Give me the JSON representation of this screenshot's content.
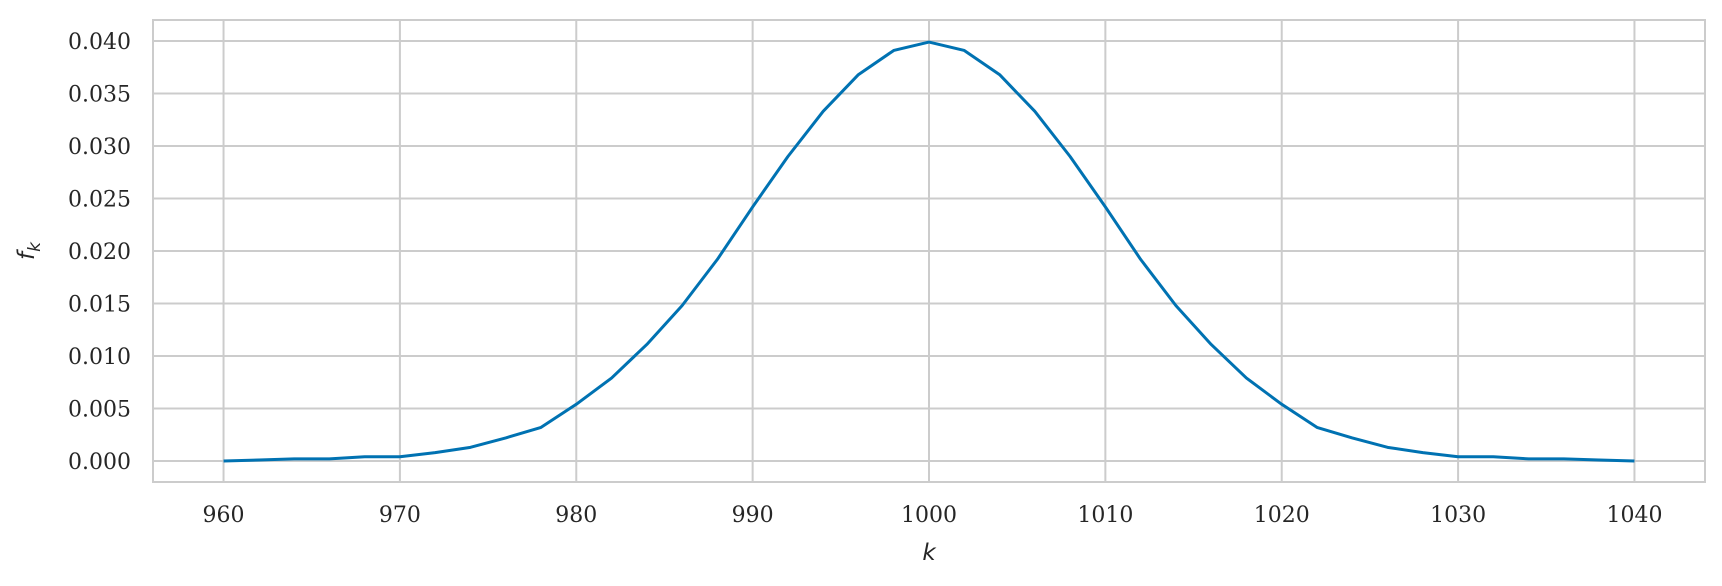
{
  "chart_data": {
    "type": "line",
    "title": "",
    "xlabel": "k",
    "ylabel": "f",
    "ylabel_subscript": "k",
    "xlim": [
      956,
      1044
    ],
    "ylim": [
      -0.002,
      0.042
    ],
    "xticks": [
      960,
      970,
      980,
      990,
      1000,
      1010,
      1020,
      1030,
      1040
    ],
    "xtick_labels": [
      "960",
      "970",
      "980",
      "990",
      "1000",
      "1010",
      "1020",
      "1030",
      "1040"
    ],
    "yticks": [
      0.0,
      0.005,
      0.01,
      0.015,
      0.02,
      0.025,
      0.03,
      0.035,
      0.04
    ],
    "ytick_labels": [
      "0.000",
      "0.005",
      "0.010",
      "0.015",
      "0.020",
      "0.025",
      "0.030",
      "0.035",
      "0.040"
    ],
    "grid": true,
    "series": [
      {
        "color": "#0072b2",
        "x": [
          960,
          962,
          964,
          966,
          968,
          970,
          972,
          974,
          976,
          978,
          980,
          982,
          984,
          986,
          988,
          990,
          992,
          994,
          996,
          998,
          1000,
          1002,
          1004,
          1006,
          1008,
          1010,
          1012,
          1014,
          1016,
          1018,
          1020,
          1022,
          1024,
          1026,
          1028,
          1030,
          1032,
          1034,
          1036,
          1038,
          1040
        ],
        "y": [
          0.0,
          0.0001,
          0.0002,
          0.0002,
          0.0004,
          0.0004,
          0.0008,
          0.0013,
          0.0022,
          0.0032,
          0.0054,
          0.0079,
          0.0111,
          0.0148,
          0.0192,
          0.0242,
          0.029,
          0.0333,
          0.0368,
          0.0391,
          0.0399,
          0.0391,
          0.0368,
          0.0333,
          0.029,
          0.0242,
          0.0192,
          0.0148,
          0.0111,
          0.0079,
          0.0054,
          0.0032,
          0.0022,
          0.0013,
          0.0008,
          0.0004,
          0.0004,
          0.0002,
          0.0002,
          0.0001,
          0.0
        ]
      }
    ]
  }
}
